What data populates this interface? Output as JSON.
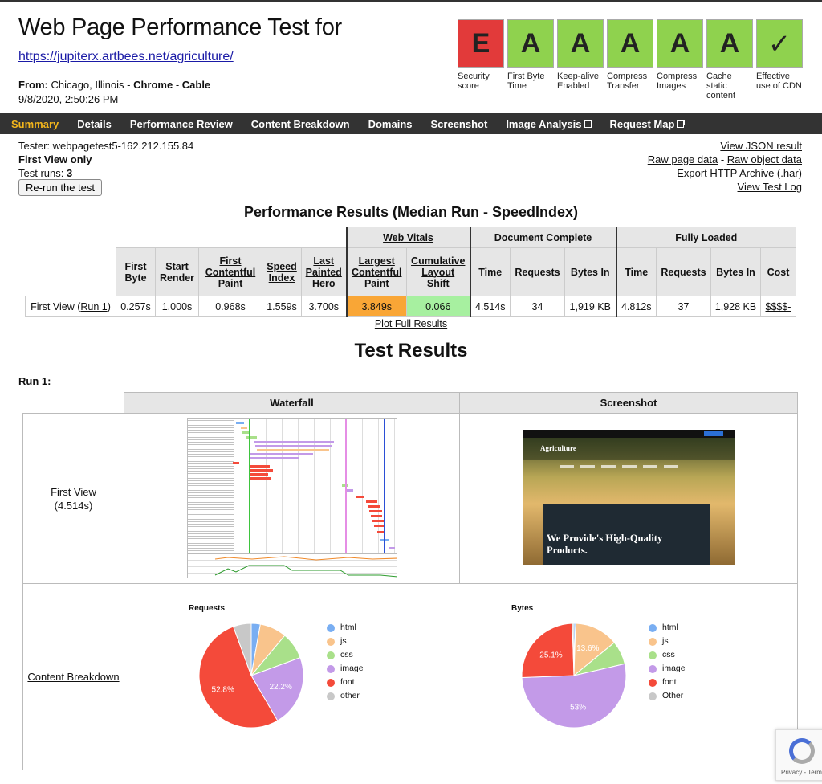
{
  "header": {
    "title": "Web Page Performance Test for",
    "url": "https://jupiterx.artbees.net/agriculture/",
    "from_label": "From:",
    "location": "Chicago, Illinois",
    "browser": "Chrome",
    "connection": "Cable",
    "date": "9/8/2020, 2:50:26 PM"
  },
  "grades": [
    {
      "grade": "E",
      "label": "Security score",
      "color": "#e23a3a"
    },
    {
      "grade": "A",
      "label": "First Byte Time",
      "color": "#8fd24e"
    },
    {
      "grade": "A",
      "label": "Keep-alive Enabled",
      "color": "#8fd24e"
    },
    {
      "grade": "A",
      "label": "Compress Transfer",
      "color": "#8fd24e"
    },
    {
      "grade": "A",
      "label": "Compress Images",
      "color": "#8fd24e"
    },
    {
      "grade": "A",
      "label": "Cache static content",
      "color": "#8fd24e"
    },
    {
      "grade": "✓",
      "label": "Effective use of CDN",
      "color": "#8fd24e"
    }
  ],
  "nav": {
    "summary": "Summary",
    "details": "Details",
    "performance_review": "Performance Review",
    "content_breakdown": "Content Breakdown",
    "domains": "Domains",
    "screenshot": "Screenshot",
    "image_analysis": "Image Analysis",
    "request_map": "Request Map"
  },
  "tester": {
    "tester_line": "Tester: webpagetest5-162.212.155.84",
    "first_view_only": "First View only",
    "test_runs_label": "Test runs:",
    "test_runs": "3",
    "rerun": "Re-run the test"
  },
  "links": {
    "json": "View JSON result",
    "raw_page": "Raw page data",
    "raw_object": "Raw object data",
    "har": "Export HTTP Archive (.har)",
    "log": "View Test Log"
  },
  "perf": {
    "title": "Performance Results (Median Run - SpeedIndex)",
    "groups": {
      "web_vitals": "Web Vitals",
      "doc_complete": "Document Complete",
      "fully_loaded": "Fully Loaded"
    },
    "headers": {
      "first_byte": "First Byte",
      "start_render": "Start Render",
      "fcp": "First Contentful Paint",
      "speed_index": "Speed Index",
      "lph": "Last Painted Hero",
      "lcp": "Largest Contentful Paint",
      "cls": "Cumulative Layout Shift",
      "time": "Time",
      "requests": "Requests",
      "bytes_in": "Bytes In",
      "cost": "Cost"
    },
    "row": {
      "label": "First View (",
      "run_link": "Run 1",
      "first_byte": "0.257s",
      "start_render": "1.000s",
      "fcp": "0.968s",
      "speed_index": "1.559s",
      "lph": "3.700s",
      "lcp": "3.849s",
      "cls": "0.066",
      "dc_time": "4.514s",
      "dc_requests": "34",
      "dc_bytes": "1,919 KB",
      "fl_time": "4.812s",
      "fl_requests": "37",
      "fl_bytes": "1,928 KB",
      "cost": "$$$$-"
    },
    "plot_link": "Plot Full Results"
  },
  "results": {
    "title": "Test Results",
    "run_label": "Run 1:",
    "waterfall_header": "Waterfall",
    "screenshot_header": "Screenshot",
    "first_view": "First View",
    "first_view_time": "(4.514s)",
    "content_breakdown": "Content Breakdown",
    "screenshot_logo": "Agriculture",
    "screenshot_text_1": "We Provide's High-Quality",
    "screenshot_text_2": "Products."
  },
  "chart_data": [
    {
      "type": "pie",
      "title": "Requests",
      "categories": [
        "html",
        "js",
        "css",
        "image",
        "font",
        "other"
      ],
      "values": [
        2.8,
        8.3,
        8.3,
        22.2,
        52.8,
        5.6
      ],
      "labels_shown": [
        "",
        "",
        "",
        "22.2%",
        "52.8%",
        ""
      ],
      "colors": [
        "#79aef2",
        "#f9c48c",
        "#a9e08a",
        "#c39ae8",
        "#f44a3a",
        "#c8c8c8"
      ],
      "legend": "right"
    },
    {
      "type": "pie",
      "title": "Bytes",
      "categories": [
        "html",
        "js",
        "css",
        "image",
        "font",
        "Other"
      ],
      "values": [
        0.5,
        13.6,
        7.3,
        53.0,
        25.1,
        0.5
      ],
      "labels_shown": [
        "",
        "13.6%",
        "",
        "53%",
        "25.1%",
        ""
      ],
      "colors": [
        "#79aef2",
        "#f9c48c",
        "#a9e08a",
        "#c39ae8",
        "#f44a3a",
        "#c8c8c8"
      ],
      "legend": "right"
    }
  ],
  "recaptcha": {
    "text": "Privacy - Terms"
  }
}
